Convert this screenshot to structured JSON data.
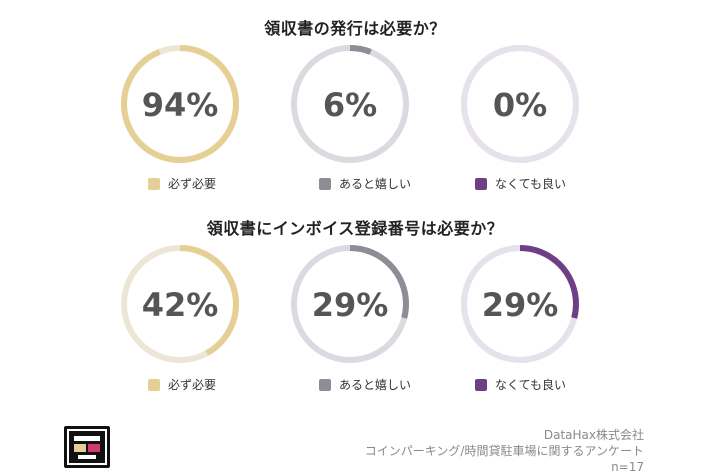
{
  "colors": {
    "必ず必要": "#e6cf94",
    "あると嬉しい": "#8f8c96",
    "なくても良い": "#6e3f85",
    "track_1": "#ebe6d6",
    "track_2": "#dcdae0",
    "track_3": "#e6e1ea"
  },
  "chart_data": [
    {
      "type": "pie",
      "title": "領収書の発行は必要か？",
      "categories": [
        "必ず必要",
        "あると嬉しい",
        "なくても良い"
      ],
      "values": [
        94,
        6,
        0
      ],
      "labels": [
        "94%",
        "6%",
        "0%"
      ]
    },
    {
      "type": "pie",
      "title": "領収書にインボイス登録番号は必要か？",
      "categories": [
        "必ず必要",
        "あると嬉しい",
        "なくても良い"
      ],
      "values": [
        42,
        29,
        29
      ],
      "labels": [
        "42%",
        "29%",
        "29%"
      ]
    }
  ],
  "footer": {
    "company": "DataHax株式会社",
    "survey": "コインパーキング/時間貸駐車場に関するアンケート",
    "sample": "n=17"
  },
  "logo": {
    "icon": "datahax-logo-icon"
  }
}
